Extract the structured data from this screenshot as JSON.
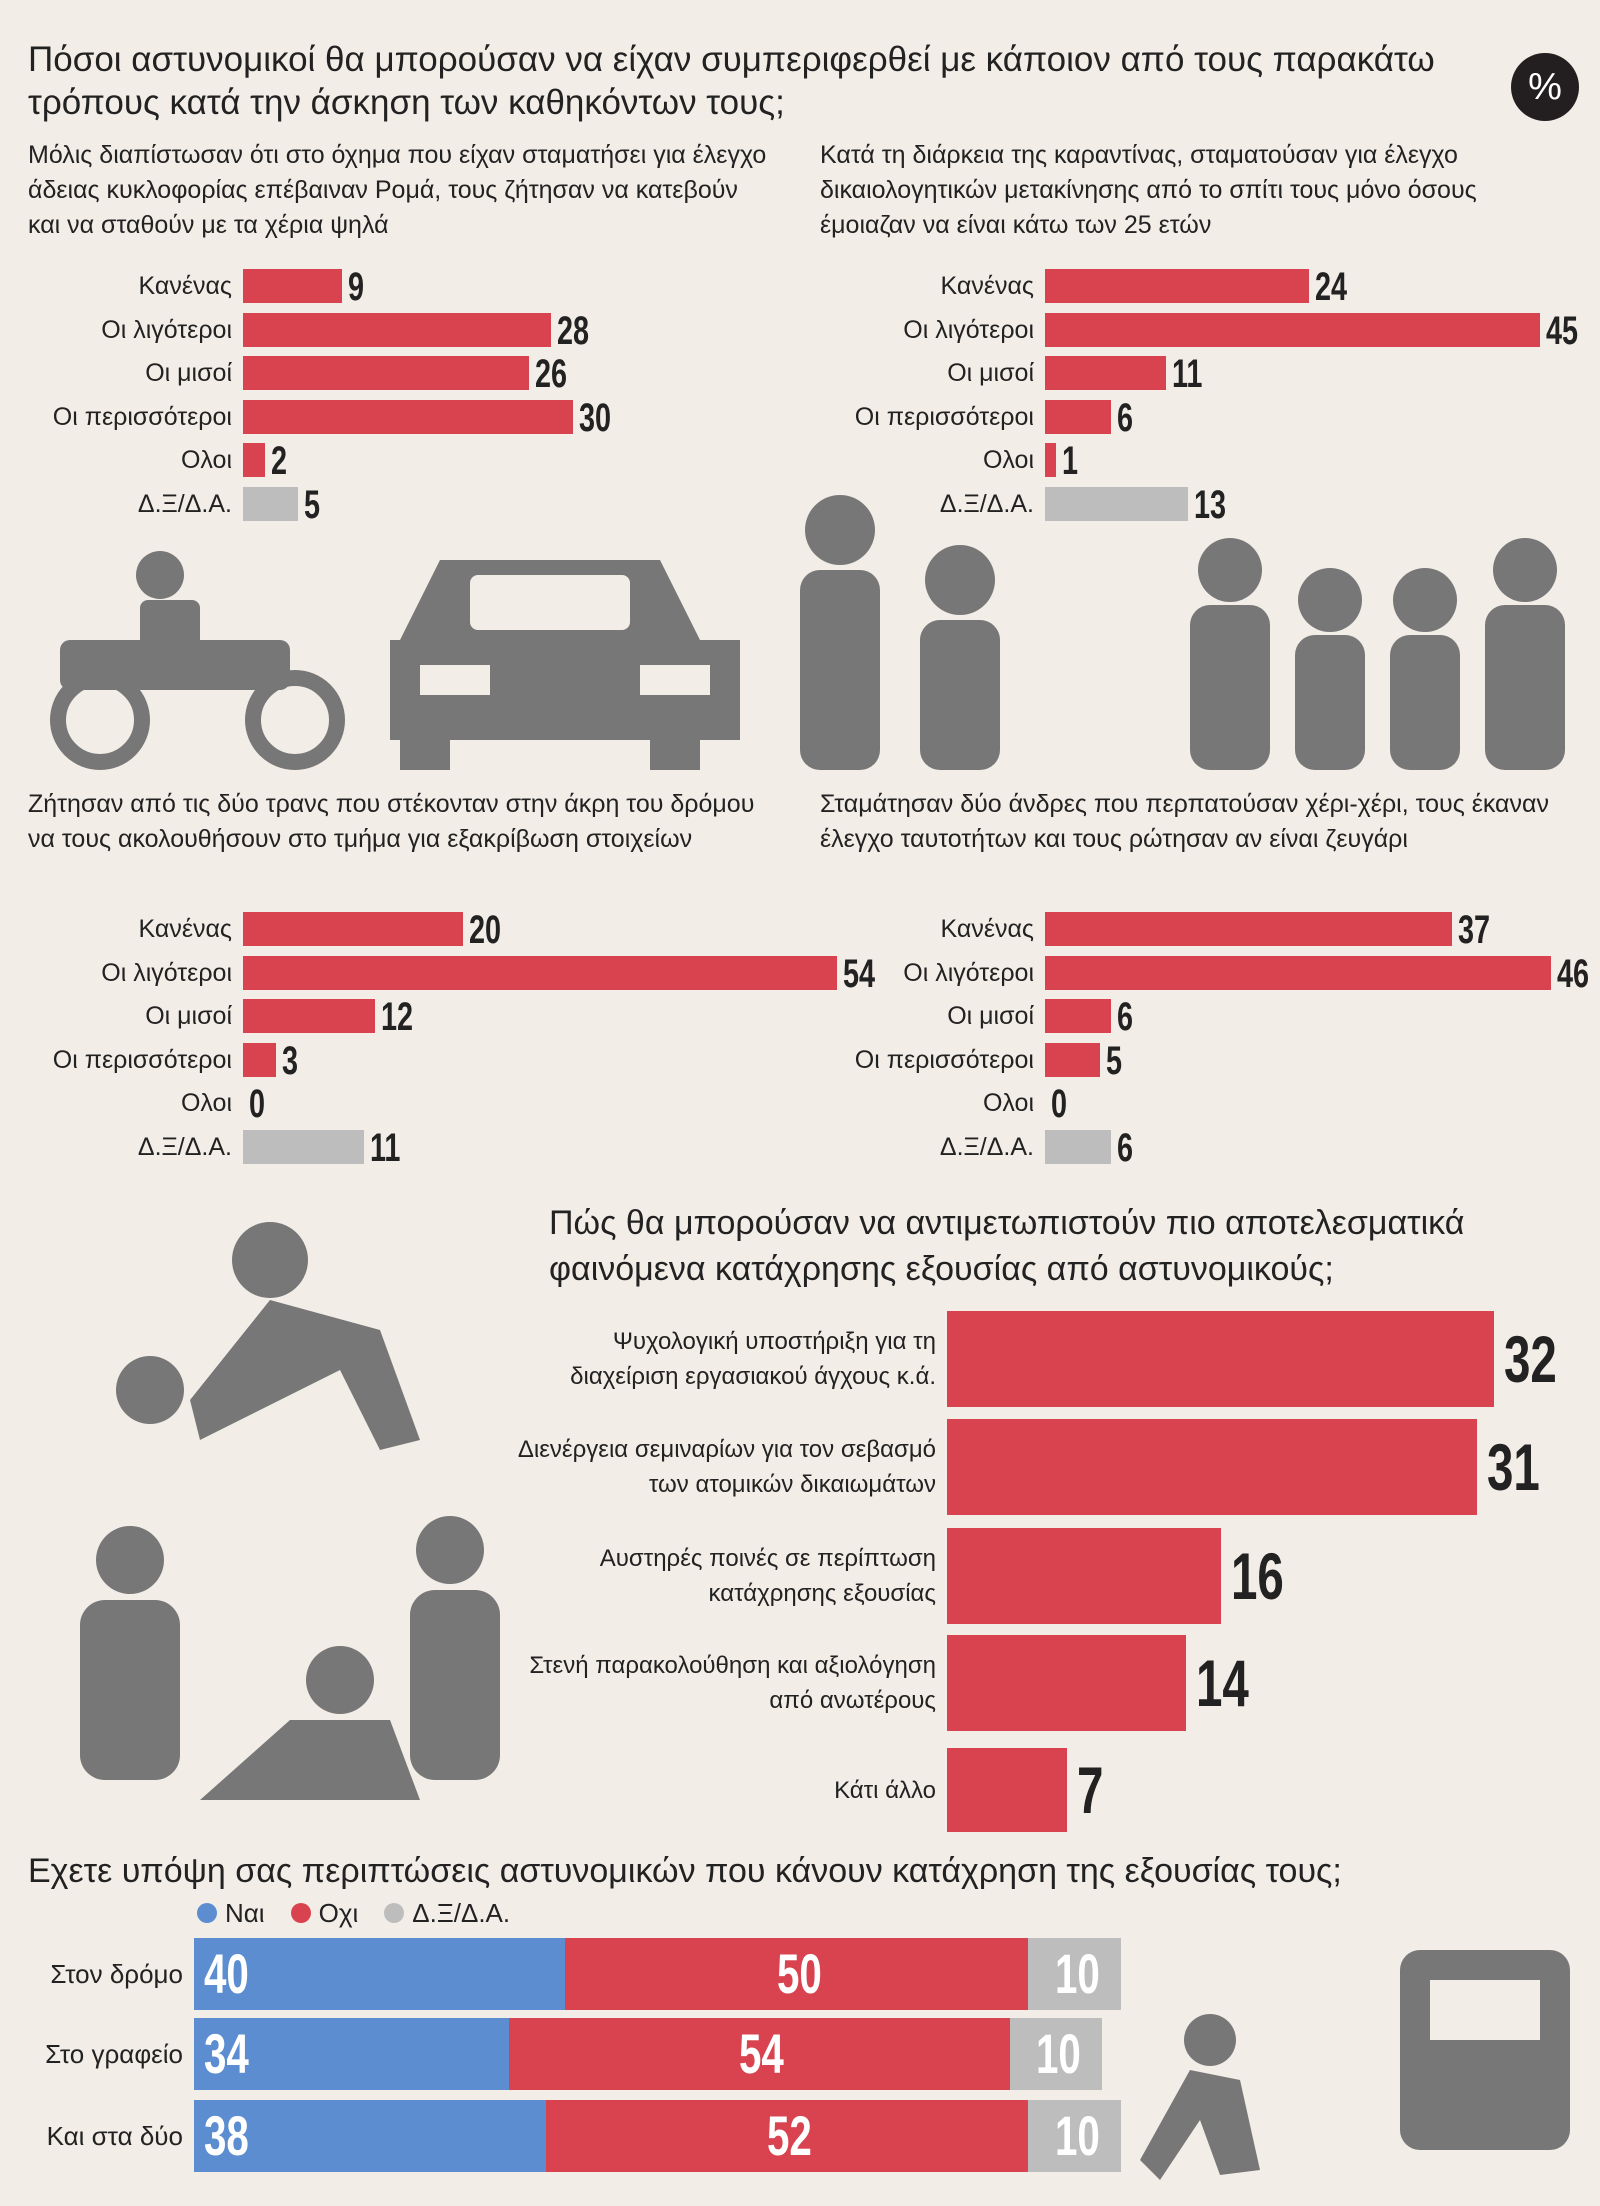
{
  "header": {
    "title": "Πόσοι αστυνομικοί θα μπορούσαν να είχαν συμπεριφερθεί με κάποιον από τους παρακάτω τρόπους κατά την άσκηση των καθηκόντων τους;",
    "badge": "%"
  },
  "chart_data": [
    {
      "type": "bar",
      "subtitle": "Μόλις διαπίστωσαν ότι στο όχημα που είχαν σταματήσει για έλεγχο άδειας κυκλοφορίας επέβαιναν Ρομά, τους ζήτησαν να κατεβούν και να σταθούν με τα χέρια ψηλά",
      "categories": [
        "Κανένας",
        "Οι λιγότεροι",
        "Οι μισοί",
        "Οι περισσότεροι",
        "Ολοι",
        "Δ.Ξ/Δ.Α."
      ],
      "values": [
        9,
        28,
        26,
        30,
        2,
        5
      ],
      "colors": [
        "#d9434f",
        "#d9434f",
        "#d9434f",
        "#d9434f",
        "#d9434f",
        "#bdbdbd"
      ]
    },
    {
      "type": "bar",
      "subtitle": "Κατά τη διάρκεια της καραντίνας, σταματούσαν για έλεγχο δικαιολογητικών μετακίνησης από το σπίτι τους μόνο όσους έμοιαζαν να είναι κάτω των 25 ετών",
      "categories": [
        "Κανένας",
        "Οι λιγότεροι",
        "Οι μισοί",
        "Οι περισσότεροι",
        "Ολοι",
        "Δ.Ξ/Δ.Α."
      ],
      "values": [
        24,
        45,
        11,
        6,
        1,
        13
      ],
      "colors": [
        "#d9434f",
        "#d9434f",
        "#d9434f",
        "#d9434f",
        "#d9434f",
        "#bdbdbd"
      ]
    },
    {
      "type": "bar",
      "subtitle": "Ζήτησαν από τις δύο τρανς που στέκονταν στην άκρη του δρόμου να τους ακολουθήσουν στο τμήμα για εξακρίβωση στοιχείων",
      "categories": [
        "Κανένας",
        "Οι λιγότεροι",
        "Οι μισοί",
        "Οι περισσότεροι",
        "Ολοι",
        "Δ.Ξ/Δ.Α."
      ],
      "values": [
        20,
        54,
        12,
        3,
        0,
        11
      ],
      "colors": [
        "#d9434f",
        "#d9434f",
        "#d9434f",
        "#d9434f",
        "#d9434f",
        "#bdbdbd"
      ]
    },
    {
      "type": "bar",
      "subtitle": "Σταμάτησαν δύο άνδρες που περπατούσαν χέρι-χέρι, τους έκαναν έλεγχο ταυτοτήτων και τους ρώτησαν αν είναι ζευγάρι",
      "categories": [
        "Κανένας",
        "Οι λιγότεροι",
        "Οι μισοί",
        "Οι περισσότεροι",
        "Ολοι",
        "Δ.Ξ/Δ.Α."
      ],
      "values": [
        37,
        46,
        6,
        5,
        0,
        6
      ],
      "colors": [
        "#d9434f",
        "#d9434f",
        "#d9434f",
        "#d9434f",
        "#d9434f",
        "#bdbdbd"
      ]
    },
    {
      "type": "bar",
      "title": "Πώς θα μπορούσαν να αντιμετωπιστούν πιο αποτελεσματικά φαινόμενα κατάχρησης εξουσίας από αστυνομικούς;",
      "categories": [
        "Ψυχολογική υποστήριξη για τη διαχείριση εργασιακού άγχους κ.ά.",
        "Διενέργεια σεμιναρίων για τον σεβασμό των ατομικών δικαιωμάτων",
        "Αυστηρές ποινές σε περίπτωση κατάχρησης εξουσίας",
        "Στενή παρακολούθηση και αξιολόγηση από ανωτέρους",
        "Κάτι άλλο"
      ],
      "values": [
        32,
        31,
        16,
        14,
        7
      ],
      "color": "#d9434f"
    },
    {
      "type": "stackedbar",
      "title": "Εχετε υπόψη σας περιπτώσεις αστυνομικών που κάνουν κατάχρηση της εξουσίας τους;",
      "categories": [
        "Στον δρόμο",
        "Στο γραφείο",
        "Και στα δύο"
      ],
      "series": [
        {
          "name": "Ναι",
          "color": "#5b8dd0",
          "values": [
            40,
            34,
            38
          ]
        },
        {
          "name": "Οχι",
          "color": "#d9434f",
          "values": [
            50,
            54,
            52
          ]
        },
        {
          "name": "Δ.Ξ/Δ.Α.",
          "color": "#bdbdbd",
          "values": [
            10,
            10,
            10
          ]
        }
      ]
    }
  ]
}
